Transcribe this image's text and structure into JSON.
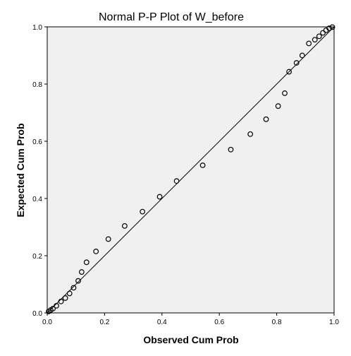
{
  "chart_data": {
    "type": "scatter",
    "title": "Normal P-P Plot of W_before",
    "xlabel": "Observed Cum Prob",
    "ylabel": "Expected Cum Prob",
    "xlim": [
      0,
      1
    ],
    "ylim": [
      0,
      1
    ],
    "xticks": [
      "0.0",
      "0.2",
      "0.4",
      "0.6",
      "0.8",
      "1.0"
    ],
    "yticks": [
      "0.0",
      "0.2",
      "0.4",
      "0.6",
      "0.8",
      "1.0"
    ],
    "grid": false,
    "background": "#f0f0f0",
    "reference_line": {
      "from": [
        0,
        0
      ],
      "to": [
        1,
        1
      ]
    },
    "points": [
      [
        0.005,
        0.005
      ],
      [
        0.012,
        0.01
      ],
      [
        0.02,
        0.015
      ],
      [
        0.032,
        0.025
      ],
      [
        0.048,
        0.04
      ],
      [
        0.063,
        0.052
      ],
      [
        0.078,
        0.068
      ],
      [
        0.092,
        0.088
      ],
      [
        0.108,
        0.112
      ],
      [
        0.12,
        0.143
      ],
      [
        0.137,
        0.177
      ],
      [
        0.17,
        0.215
      ],
      [
        0.213,
        0.258
      ],
      [
        0.27,
        0.304
      ],
      [
        0.332,
        0.354
      ],
      [
        0.392,
        0.406
      ],
      [
        0.451,
        0.461
      ],
      [
        0.542,
        0.516
      ],
      [
        0.64,
        0.571
      ],
      [
        0.708,
        0.625
      ],
      [
        0.763,
        0.677
      ],
      [
        0.805,
        0.723
      ],
      [
        0.828,
        0.768
      ],
      [
        0.843,
        0.843
      ],
      [
        0.869,
        0.874
      ],
      [
        0.889,
        0.9
      ],
      [
        0.912,
        0.942
      ],
      [
        0.933,
        0.955
      ],
      [
        0.948,
        0.967
      ],
      [
        0.961,
        0.979
      ],
      [
        0.972,
        0.988
      ],
      [
        0.983,
        0.995
      ],
      [
        0.994,
        0.999
      ]
    ]
  }
}
